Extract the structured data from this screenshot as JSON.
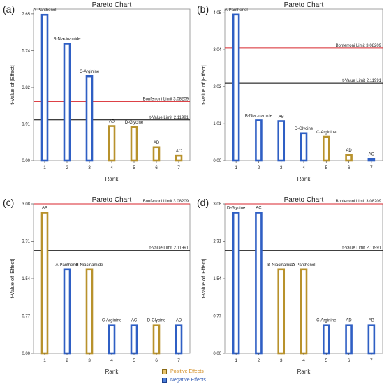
{
  "colors": {
    "positive_fill": "#ffffff",
    "positive_stroke": "#b8922c",
    "negative_fill": "#ffffff",
    "negative_stroke": "#2f5fc4",
    "bonferroni_line": "#d8262c",
    "tvalue_line": "#000000"
  },
  "legend": {
    "positive": "Positive Effects",
    "negative": "Negative Effects"
  },
  "chart_data": [
    {
      "panel_label": "(a)",
      "type": "bar",
      "title": "Pareto Chart",
      "xlabel": "Rank",
      "ylabel": "t-Value of |Effect|",
      "ylim": [
        0,
        7.9
      ],
      "yticks": [
        "0.00",
        "1.91",
        "3.82",
        "5.74",
        "7.65"
      ],
      "categories": [
        "1",
        "2",
        "3",
        "4",
        "5",
        "6",
        "7"
      ],
      "labels": [
        "A-Panthenol",
        "B-Niacinamide",
        "C-Arginine",
        "AB",
        "D-Glycine",
        "AD",
        "AC"
      ],
      "values": [
        7.6,
        6.1,
        4.4,
        1.8,
        1.75,
        0.7,
        0.25
      ],
      "effects": [
        "negative",
        "negative",
        "negative",
        "positive",
        "positive",
        "positive",
        "positive"
      ],
      "reference_lines": [
        {
          "label": "Bonferroni Limit 3.08209",
          "value": 3.08209,
          "kind": "bonferroni"
        },
        {
          "label": "t-Value Limit 2.11991",
          "value": 2.11991,
          "kind": "tvalue"
        }
      ]
    },
    {
      "panel_label": "(b)",
      "type": "bar",
      "title": "Pareto Chart",
      "xlabel": "Rank",
      "ylabel": "t-Value of |Effect|",
      "ylim": [
        0,
        4.15
      ],
      "yticks": [
        "0.00",
        "1.01",
        "2.03",
        "3.04",
        "4.05"
      ],
      "categories": [
        "1",
        "2",
        "3",
        "4",
        "5",
        "6",
        "7"
      ],
      "labels": [
        "A-Panthenol",
        "B-Niacinamide",
        "AB",
        "D-Glycine",
        "C-Arginine",
        "AD",
        "AC"
      ],
      "values": [
        4.0,
        1.1,
        1.08,
        0.75,
        0.65,
        0.15,
        0.05
      ],
      "effects": [
        "negative",
        "negative",
        "negative",
        "negative",
        "positive",
        "positive",
        "negative"
      ],
      "reference_lines": [
        {
          "label": "Bonferroni Limit 3.08209",
          "value": 3.08209,
          "kind": "bonferroni"
        },
        {
          "label": "t-Value Limit 2.11991",
          "value": 2.11991,
          "kind": "tvalue"
        }
      ]
    },
    {
      "panel_label": "(c)",
      "type": "bar",
      "title": "Pareto Chart",
      "xlabel": "Rank",
      "ylabel": "t-Value of |Effect|",
      "ylim": [
        0,
        3.08
      ],
      "yticks": [
        "0.00",
        "0.77",
        "1.54",
        "2.31",
        "3.08"
      ],
      "categories": [
        "1",
        "2",
        "3",
        "4",
        "5",
        "6",
        "7"
      ],
      "labels": [
        "AB",
        "A-Panthenol",
        "B-Niacinamide",
        "C-Arginine",
        "AC",
        "D-Glycine",
        "AD"
      ],
      "values": [
        2.9,
        1.73,
        1.73,
        0.58,
        0.58,
        0.58,
        0.58
      ],
      "effects": [
        "positive",
        "negative",
        "positive",
        "negative",
        "negative",
        "positive",
        "negative"
      ],
      "reference_lines": [
        {
          "label": "Bonferroni Limit 3.08209",
          "value": 3.08209,
          "kind": "bonferroni"
        },
        {
          "label": "t-Value Limit 2.11991",
          "value": 2.11991,
          "kind": "tvalue"
        }
      ]
    },
    {
      "panel_label": "(d)",
      "type": "bar",
      "title": "Pareto Chart",
      "xlabel": "Rank",
      "ylabel": "t-Value of |Effect|",
      "ylim": [
        0,
        3.08
      ],
      "yticks": [
        "0.00",
        "0.77",
        "1.54",
        "2.31",
        "3.08"
      ],
      "categories": [
        "1",
        "2",
        "3",
        "4",
        "5",
        "6",
        "7"
      ],
      "labels": [
        "D-Glycine",
        "AC",
        "B-Niacinamide",
        "A-Panthenol",
        "C-Arginine",
        "AD",
        "AB"
      ],
      "values": [
        2.9,
        2.9,
        1.73,
        1.73,
        0.58,
        0.58,
        0.58
      ],
      "effects": [
        "negative",
        "negative",
        "positive",
        "positive",
        "negative",
        "negative",
        "negative"
      ],
      "reference_lines": [
        {
          "label": "Bonferroni Limit 3.08209",
          "value": 3.08209,
          "kind": "bonferroni"
        },
        {
          "label": "t-Value Limit 2.11991",
          "value": 2.11991,
          "kind": "tvalue"
        }
      ]
    }
  ]
}
